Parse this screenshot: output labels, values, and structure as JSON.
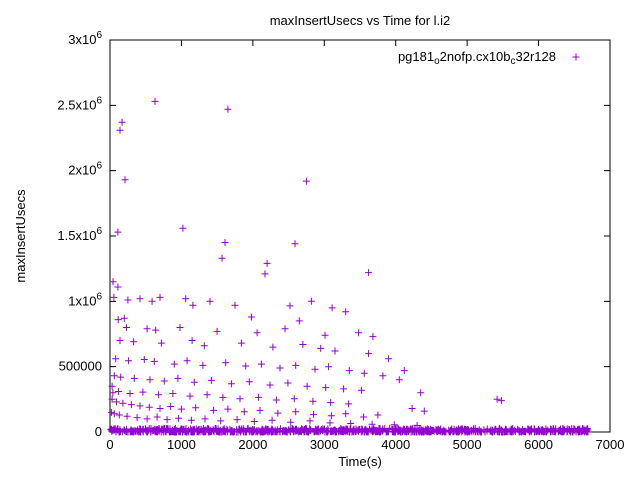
{
  "colors": {
    "marker": "#9400d3",
    "axis": "#000000",
    "text": "#000000",
    "background": "#ffffff"
  },
  "chart_data": {
    "type": "scatter",
    "title": "maxInsertUsecs vs Time for l.i2",
    "xlabel": "Time(s)",
    "ylabel": "maxInsertUsecs",
    "xlim": [
      0,
      7000
    ],
    "ylim": [
      0,
      3000000
    ],
    "grid": false,
    "border": true,
    "x_ticks": [
      0,
      1000,
      2000,
      3000,
      4000,
      5000,
      6000,
      7000
    ],
    "x_tick_labels": [
      "0",
      "1000",
      "2000",
      "3000",
      "4000",
      "5000",
      "6000",
      "7000"
    ],
    "y_ticks": [
      0,
      500000,
      1000000,
      1500000,
      2000000,
      2500000,
      3000000
    ],
    "y_tick_labels": [
      "0",
      "500000",
      "1x10^6",
      "1.5x10^6",
      "2x10^6",
      "2.5x10^6",
      "3x10^6"
    ],
    "legend": {
      "position": "top-right-inside",
      "label_plain": "pg181_o2nofp.cx10b_c32r128",
      "label_segments": [
        {
          "text": "pg181",
          "sub": false
        },
        {
          "text": "o",
          "sub": true
        },
        {
          "text": "2nofp.cx10b",
          "sub": false
        },
        {
          "text": "c",
          "sub": true
        },
        {
          "text": "32r128",
          "sub": false
        }
      ]
    },
    "marker": {
      "shape": "plus",
      "color": "#9400d3",
      "size": 7
    },
    "series": [
      {
        "name": "pg181_o2nofp.cx10b_c32r128",
        "points": [
          [
            630,
            2530000
          ],
          [
            1650,
            2470000
          ],
          [
            170,
            2370000
          ],
          [
            140,
            2310000
          ],
          [
            210,
            1930000
          ],
          [
            2750,
            1920000
          ],
          [
            1020,
            1560000
          ],
          [
            110,
            1530000
          ],
          [
            1610,
            1450000
          ],
          [
            2590,
            1440000
          ],
          [
            1570,
            1330000
          ],
          [
            2200,
            1290000
          ],
          [
            3620,
            1220000
          ],
          [
            2170,
            1210000
          ],
          [
            42,
            1150000
          ],
          [
            110,
            1110000
          ],
          [
            55,
            1030000
          ],
          [
            250,
            1010000
          ],
          [
            420,
            1020000
          ],
          [
            590,
            1000000
          ],
          [
            700,
            1030000
          ],
          [
            1060,
            1020000
          ],
          [
            1160,
            970000
          ],
          [
            1400,
            1000000
          ],
          [
            1750,
            970000
          ],
          [
            2520,
            965000
          ],
          [
            2820,
            1000000
          ],
          [
            3110,
            950000
          ],
          [
            3300,
            920000
          ],
          [
            200,
            870000
          ],
          [
            115,
            860000
          ],
          [
            1980,
            880000
          ],
          [
            2650,
            850000
          ],
          [
            230,
            800000
          ],
          [
            520,
            790000
          ],
          [
            640,
            780000
          ],
          [
            980,
            800000
          ],
          [
            1500,
            770000
          ],
          [
            2060,
            760000
          ],
          [
            2450,
            790000
          ],
          [
            3010,
            740000
          ],
          [
            3480,
            760000
          ],
          [
            3680,
            730000
          ],
          [
            140,
            700000
          ],
          [
            330,
            690000
          ],
          [
            720,
            680000
          ],
          [
            1150,
            700000
          ],
          [
            1320,
            660000
          ],
          [
            1840,
            680000
          ],
          [
            2280,
            650000
          ],
          [
            2700,
            670000
          ],
          [
            2950,
            640000
          ],
          [
            3150,
            620000
          ],
          [
            3620,
            600000
          ],
          [
            3900,
            560000
          ],
          [
            80,
            560000
          ],
          [
            260,
            545000
          ],
          [
            480,
            555000
          ],
          [
            620,
            540000
          ],
          [
            900,
            520000
          ],
          [
            1080,
            545000
          ],
          [
            1300,
            510000
          ],
          [
            1620,
            530000
          ],
          [
            1900,
            505000
          ],
          [
            2120,
            520000
          ],
          [
            2380,
            490000
          ],
          [
            2600,
            510000
          ],
          [
            2870,
            480000
          ],
          [
            3060,
            500000
          ],
          [
            3350,
            470000
          ],
          [
            3560,
            450000
          ],
          [
            3820,
            430000
          ],
          [
            4050,
            400000
          ],
          [
            4120,
            470000
          ],
          [
            60,
            430000
          ],
          [
            150,
            420000
          ],
          [
            340,
            410000
          ],
          [
            560,
            400000
          ],
          [
            760,
            390000
          ],
          [
            950,
            410000
          ],
          [
            1180,
            380000
          ],
          [
            1420,
            395000
          ],
          [
            1700,
            370000
          ],
          [
            1950,
            385000
          ],
          [
            2240,
            360000
          ],
          [
            2490,
            375000
          ],
          [
            2760,
            350000
          ],
          [
            3020,
            340000
          ],
          [
            3270,
            330000
          ],
          [
            3520,
            320000
          ],
          [
            30,
            350000
          ],
          [
            40,
            300000
          ],
          [
            120,
            310000
          ],
          [
            280,
            295000
          ],
          [
            460,
            305000
          ],
          [
            680,
            285000
          ],
          [
            880,
            295000
          ],
          [
            1120,
            275000
          ],
          [
            1360,
            285000
          ],
          [
            1580,
            265000
          ],
          [
            1820,
            255000
          ],
          [
            2080,
            265000
          ],
          [
            2330,
            245000
          ],
          [
            2580,
            255000
          ],
          [
            2840,
            235000
          ],
          [
            3090,
            225000
          ],
          [
            3340,
            215000
          ],
          [
            4350,
            300000
          ],
          [
            5420,
            250000
          ],
          [
            5480,
            240000
          ],
          [
            4230,
            180000
          ],
          [
            4400,
            160000
          ],
          [
            30,
            250000
          ],
          [
            90,
            230000
          ],
          [
            180,
            220000
          ],
          [
            300,
            210000
          ],
          [
            420,
            200000
          ],
          [
            550,
            190000
          ],
          [
            700,
            180000
          ],
          [
            850,
            195000
          ],
          [
            1000,
            175000
          ],
          [
            1200,
            185000
          ],
          [
            1450,
            165000
          ],
          [
            1650,
            175000
          ],
          [
            1880,
            155000
          ],
          [
            2100,
            165000
          ],
          [
            2350,
            145000
          ],
          [
            2600,
            155000
          ],
          [
            2850,
            135000
          ],
          [
            3100,
            125000
          ],
          [
            3300,
            140000
          ],
          [
            3550,
            115000
          ],
          [
            3750,
            130000
          ],
          [
            20,
            150000
          ],
          [
            60,
            140000
          ],
          [
            130,
            130000
          ],
          [
            240,
            120000
          ],
          [
            380,
            110000
          ],
          [
            520,
            100000
          ],
          [
            660,
            115000
          ],
          [
            800,
            95000
          ],
          [
            960,
            105000
          ],
          [
            1140,
            90000
          ],
          [
            1330,
            100000
          ],
          [
            1550,
            85000
          ],
          [
            1780,
            95000
          ],
          [
            2020,
            80000
          ],
          [
            2270,
            90000
          ],
          [
            2530,
            75000
          ],
          [
            2800,
            85000
          ],
          [
            3080,
            70000
          ],
          [
            3370,
            65000
          ],
          [
            3670,
            60000
          ],
          [
            3980,
            55000
          ],
          [
            4300,
            50000
          ]
        ]
      }
    ],
    "baseline_band": {
      "description": "dense band of overlapping plus markers hugging y=0 across the full x range",
      "x_min": 0,
      "x_max": 6720,
      "y_min": 0,
      "y_max": 28000,
      "approx_count": 950,
      "seed": 42
    }
  }
}
